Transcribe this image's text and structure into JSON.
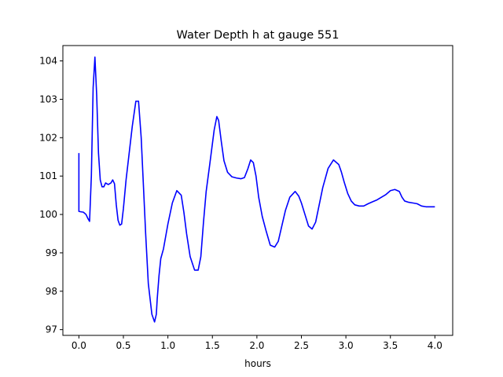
{
  "chart_data": {
    "type": "line",
    "title": "Water Depth h at gauge 551",
    "xlabel": "hours",
    "ylabel": "",
    "xlim": [
      -0.18,
      4.2
    ],
    "ylim": [
      96.85,
      104.4
    ],
    "xticks": [
      0.0,
      0.5,
      1.0,
      1.5,
      2.0,
      2.5,
      3.0,
      3.5,
      4.0
    ],
    "xtick_labels": [
      "0.0",
      "0.5",
      "1.0",
      "1.5",
      "2.0",
      "2.5",
      "3.0",
      "3.5",
      "4.0"
    ],
    "yticks": [
      97,
      98,
      99,
      100,
      101,
      102,
      103,
      104
    ],
    "ytick_labels": [
      "97",
      "98",
      "99",
      "100",
      "101",
      "102",
      "103",
      "104"
    ],
    "grid": false,
    "legend": false,
    "series": [
      {
        "color": "#0000ff",
        "x": [
          0.0,
          0.0,
          0.02,
          0.05,
          0.08,
          0.1,
          0.12,
          0.14,
          0.16,
          0.18,
          0.2,
          0.22,
          0.24,
          0.26,
          0.28,
          0.3,
          0.33,
          0.36,
          0.38,
          0.4,
          0.42,
          0.44,
          0.46,
          0.48,
          0.5,
          0.53,
          0.56,
          0.6,
          0.64,
          0.67,
          0.7,
          0.72,
          0.75,
          0.78,
          0.82,
          0.85,
          0.87,
          0.88,
          0.9,
          0.92,
          0.95,
          1.0,
          1.05,
          1.1,
          1.15,
          1.18,
          1.21,
          1.25,
          1.3,
          1.34,
          1.37,
          1.4,
          1.43,
          1.47,
          1.52,
          1.55,
          1.57,
          1.6,
          1.63,
          1.67,
          1.72,
          1.77,
          1.82,
          1.86,
          1.9,
          1.93,
          1.96,
          1.99,
          2.02,
          2.06,
          2.1,
          2.15,
          2.2,
          2.24,
          2.28,
          2.32,
          2.37,
          2.43,
          2.47,
          2.5,
          2.54,
          2.58,
          2.62,
          2.66,
          2.7,
          2.74,
          2.8,
          2.86,
          2.92,
          2.95,
          2.98,
          3.02,
          3.06,
          3.1,
          3.15,
          3.2,
          3.25,
          3.3,
          3.35,
          3.4,
          3.45,
          3.5,
          3.55,
          3.6,
          3.63,
          3.66,
          3.7,
          3.75,
          3.8,
          3.85,
          3.9,
          3.95,
          4.0
        ],
        "y": [
          101.6,
          100.08,
          100.07,
          100.06,
          100.0,
          99.9,
          99.82,
          101.0,
          103.3,
          104.1,
          103.1,
          101.6,
          100.9,
          100.72,
          100.72,
          100.82,
          100.78,
          100.82,
          100.9,
          100.8,
          100.25,
          99.85,
          99.72,
          99.75,
          100.15,
          100.9,
          101.5,
          102.3,
          102.95,
          102.95,
          102.0,
          101.0,
          99.5,
          98.2,
          97.4,
          97.2,
          97.4,
          97.8,
          98.4,
          98.85,
          99.1,
          99.75,
          100.3,
          100.62,
          100.5,
          100.05,
          99.5,
          98.9,
          98.55,
          98.55,
          98.9,
          99.8,
          100.6,
          101.3,
          102.2,
          102.55,
          102.45,
          101.9,
          101.4,
          101.1,
          100.98,
          100.95,
          100.93,
          100.96,
          101.2,
          101.42,
          101.35,
          101.0,
          100.45,
          99.95,
          99.6,
          99.2,
          99.15,
          99.3,
          99.7,
          100.1,
          100.45,
          100.6,
          100.48,
          100.3,
          100.0,
          99.7,
          99.62,
          99.8,
          100.25,
          100.7,
          101.2,
          101.42,
          101.3,
          101.1,
          100.85,
          100.55,
          100.35,
          100.25,
          100.22,
          100.22,
          100.28,
          100.33,
          100.38,
          100.45,
          100.52,
          100.62,
          100.65,
          100.6,
          100.45,
          100.35,
          100.32,
          100.3,
          100.28,
          100.22,
          100.2,
          100.2,
          100.2
        ]
      }
    ]
  }
}
